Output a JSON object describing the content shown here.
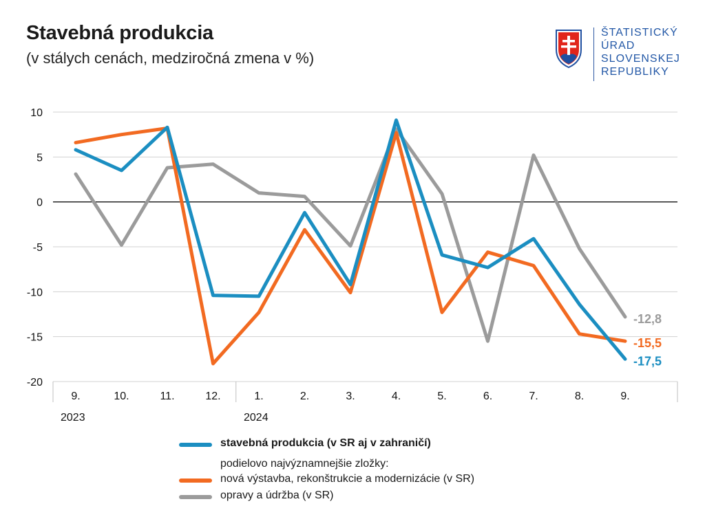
{
  "header": {
    "title": "Stavebná produkcia",
    "subtitle": "(v stálych cenách, medziročná zmena v %)"
  },
  "logo": {
    "lines": [
      "ŠTATISTICKÝ",
      "ÚRAD",
      "SLOVENSKEJ",
      "REPUBLIKY"
    ],
    "colors": {
      "text": "#2257a6",
      "shield_red": "#e1251b",
      "shield_blue": "#1f4fa0"
    }
  },
  "chart_data": {
    "type": "line",
    "categories": [
      "9.",
      "10.",
      "11.",
      "12.",
      "1.",
      "2.",
      "3.",
      "4.",
      "5.",
      "6.",
      "7.",
      "8.",
      "9."
    ],
    "year_labels": [
      {
        "text": "2023",
        "index": 0
      },
      {
        "text": "2024",
        "index": 4
      }
    ],
    "ylim": [
      -20,
      10
    ],
    "yticks": [
      10,
      5,
      0,
      -5,
      -10,
      -15,
      -20
    ],
    "grid": true,
    "series": [
      {
        "name": "opravy a údržba (v SR)",
        "color": "#9b9b9b",
        "values": [
          3.1,
          -4.8,
          3.8,
          4.2,
          1.0,
          0.6,
          -4.9,
          8.1,
          0.9,
          -15.5,
          5.2,
          -5.2,
          -12.8
        ],
        "end_label": "-12,8"
      },
      {
        "name": "nová výstavba, rekonštrukcie a modernizácie (v SR)",
        "color": "#f26a21",
        "values": [
          6.6,
          7.5,
          8.2,
          -18.0,
          -12.3,
          -3.1,
          -10.1,
          7.7,
          -12.3,
          -5.6,
          -7.1,
          -14.7,
          -15.5
        ],
        "end_label": "-15,5"
      },
      {
        "name": "stavebná produkcia (v SR aj v zahraničí)",
        "color": "#1b8ec1",
        "values": [
          5.8,
          3.5,
          8.3,
          -10.4,
          -10.5,
          -1.2,
          -9.2,
          9.1,
          -5.9,
          -7.3,
          -4.1,
          -11.4,
          -17.5
        ],
        "end_label": "-17,5"
      }
    ]
  },
  "legend": {
    "main_label": "stavebná produkcia (v SR aj v zahraničí)",
    "components_heading": "podielovo najvýznamnejšie zložky:",
    "orange_label": "nová výstavba, rekonštrukcie a modernizácie (v SR)",
    "gray_label": "opravy a údržba (v SR)"
  }
}
